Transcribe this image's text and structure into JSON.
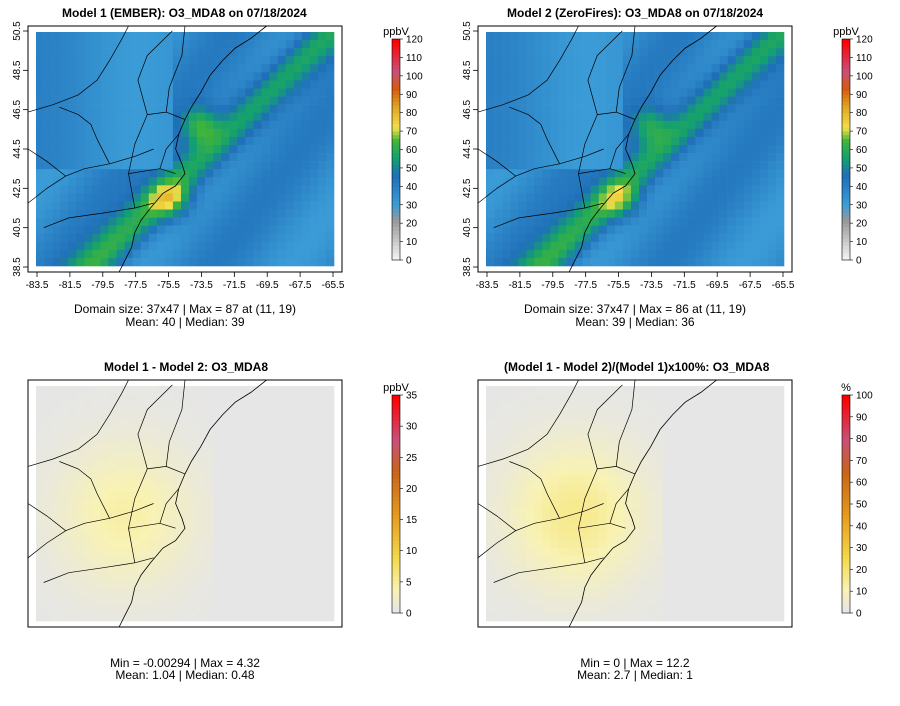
{
  "panels": [
    {
      "title": "Model 1 (EMBER): O3_MDA8 on 07/18/2024",
      "unit": "ppbV",
      "type": "absolute",
      "xticks": [
        "-83.5",
        "-81.5",
        "-79.5",
        "-77.5",
        "-75.5",
        "-73.5",
        "-71.5",
        "-69.5",
        "-67.5",
        "-65.5"
      ],
      "yticks": [
        "38.5",
        "40.5",
        "42.5",
        "44.5",
        "46.5",
        "48.5",
        "50.5"
      ],
      "colorbar_ticks": [
        "0",
        "10",
        "20",
        "30",
        "40",
        "50",
        "60",
        "70",
        "80",
        "90",
        "100",
        "110",
        "120"
      ],
      "stats_line1": "Domain size: 37x47 | Max = 87 at (11, 19)",
      "stats_line2": "Mean: 40 |  Median: 39"
    },
    {
      "title": "Model 2 (ZeroFires): O3_MDA8 on 07/18/2024",
      "unit": "ppbV",
      "type": "absolute",
      "xticks": [
        "-83.5",
        "-81.5",
        "-79.5",
        "-77.5",
        "-75.5",
        "-73.5",
        "-71.5",
        "-69.5",
        "-67.5",
        "-65.5"
      ],
      "yticks": [
        "38.5",
        "40.5",
        "42.5",
        "44.5",
        "46.5",
        "48.5",
        "50.5"
      ],
      "colorbar_ticks": [
        "0",
        "10",
        "20",
        "30",
        "40",
        "50",
        "60",
        "70",
        "80",
        "90",
        "100",
        "110",
        "120"
      ],
      "stats_line1": "Domain size: 37x47 | Max = 86 at (11, 19)",
      "stats_line2": "Mean: 39 |  Median: 36"
    },
    {
      "title": "Model 1 - Model 2: O3_MDA8",
      "unit": "ppbV",
      "type": "difference",
      "colorbar_ticks": [
        "0",
        "5",
        "10",
        "15",
        "20",
        "25",
        "30",
        "35"
      ],
      "stats_line1": "Min = -0.00294 | Max = 4.32",
      "stats_line2": "Mean: 1.04 |  Median: 0.48"
    },
    {
      "title": "(Model 1 - Model 2)/(Model 1)x100%: O3_MDA8",
      "unit": "%",
      "type": "percent",
      "colorbar_ticks": [
        "0",
        "10",
        "20",
        "30",
        "40",
        "50",
        "60",
        "70",
        "80",
        "90",
        "100"
      ],
      "stats_line1": "Min = 0 | Max = 12.2",
      "stats_line2": "Mean: 2.7 |  Median: 1"
    }
  ],
  "colors": {
    "ocean_background": "#3a9bd6",
    "difference_background": "#e6e6e6",
    "plume_yellow": "#f4e04a",
    "plume_orange": "#e08a10",
    "diff_yellow": "#f5ecaa"
  }
}
